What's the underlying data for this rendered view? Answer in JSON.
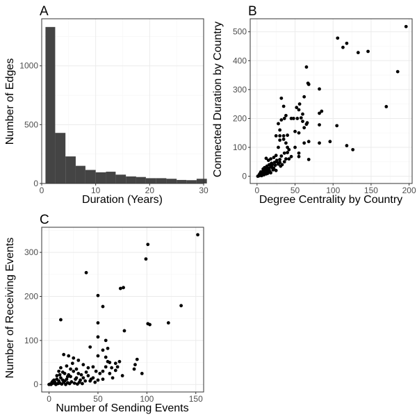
{
  "chart_data": [
    {
      "panel": "A",
      "type": "bar",
      "xlabel": "Duration (Years)",
      "ylabel": "Number of Edges",
      "xlim": [
        0,
        30
      ],
      "ylim": [
        0,
        1400
      ],
      "x_ticks": [
        0,
        10,
        20,
        30
      ],
      "y_ticks": [
        0,
        500,
        1000
      ],
      "grid": true,
      "bar_color": "#444444",
      "bins": [
        {
          "x0": 0.7,
          "x1": 2.5,
          "value": 1330
        },
        {
          "x0": 2.5,
          "x1": 4.4,
          "value": 430
        },
        {
          "x0": 4.4,
          "x1": 6.3,
          "value": 230
        },
        {
          "x0": 6.3,
          "x1": 8.1,
          "value": 150
        },
        {
          "x0": 8.1,
          "x1": 10.0,
          "value": 115
        },
        {
          "x0": 10.0,
          "x1": 11.9,
          "value": 95
        },
        {
          "x0": 11.9,
          "x1": 13.7,
          "value": 100
        },
        {
          "x0": 13.7,
          "x1": 15.6,
          "value": 75
        },
        {
          "x0": 15.6,
          "x1": 17.5,
          "value": 60
        },
        {
          "x0": 17.5,
          "x1": 19.3,
          "value": 55
        },
        {
          "x0": 19.3,
          "x1": 21.2,
          "value": 45
        },
        {
          "x0": 21.2,
          "x1": 23.1,
          "value": 45
        },
        {
          "x0": 23.1,
          "x1": 25.0,
          "value": 40
        },
        {
          "x0": 25.0,
          "x1": 26.8,
          "value": 30
        },
        {
          "x0": 26.8,
          "x1": 28.7,
          "value": 28
        },
        {
          "x0": 28.7,
          "x1": 30.6,
          "value": 40
        }
      ]
    },
    {
      "panel": "B",
      "type": "scatter",
      "xlabel": "Degree Centrality by Country",
      "ylabel": "Connected Duration by Country",
      "xlim": [
        -9,
        204
      ],
      "ylim": [
        -25,
        545
      ],
      "x_ticks": [
        0,
        50,
        100,
        150,
        200
      ],
      "y_ticks": [
        0,
        100,
        200,
        300,
        400,
        500
      ],
      "grid": true,
      "point_color": "#000000",
      "points": [
        [
          196,
          518
        ],
        [
          106,
          478
        ],
        [
          118,
          460
        ],
        [
          113,
          446
        ],
        [
          133,
          428
        ],
        [
          146,
          432
        ],
        [
          185,
          362
        ],
        [
          170,
          241
        ],
        [
          105,
          175
        ],
        [
          96,
          120
        ],
        [
          118,
          106
        ],
        [
          126,
          92
        ],
        [
          65,
          378
        ],
        [
          67,
          322
        ],
        [
          68,
          318
        ],
        [
          82,
          302
        ],
        [
          62,
          275
        ],
        [
          56,
          250
        ],
        [
          85,
          225
        ],
        [
          82,
          218
        ],
        [
          60,
          215
        ],
        [
          55,
          230
        ],
        [
          52,
          238
        ],
        [
          58,
          202
        ],
        [
          53,
          200
        ],
        [
          60,
          190
        ],
        [
          65,
          180
        ],
        [
          66,
          185
        ],
        [
          82,
          178
        ],
        [
          62,
          168
        ],
        [
          45,
          200
        ],
        [
          30,
          140
        ],
        [
          48,
          200
        ],
        [
          50,
          155
        ],
        [
          55,
          150
        ],
        [
          68,
          120
        ],
        [
          62,
          115
        ],
        [
          82,
          115
        ],
        [
          68,
          58
        ],
        [
          55,
          80
        ],
        [
          50,
          100
        ],
        [
          55,
          68
        ],
        [
          45,
          68
        ],
        [
          42,
          92
        ],
        [
          40,
          100
        ],
        [
          38,
          115
        ],
        [
          35,
          128
        ],
        [
          32,
          270
        ],
        [
          35,
          242
        ],
        [
          38,
          210
        ],
        [
          36,
          200
        ],
        [
          32,
          195
        ],
        [
          28,
          182
        ],
        [
          30,
          160
        ],
        [
          35,
          140
        ],
        [
          40,
          142
        ],
        [
          30,
          125
        ],
        [
          25,
          140
        ],
        [
          28,
          100
        ],
        [
          36,
          80
        ],
        [
          40,
          82
        ],
        [
          32,
          70
        ],
        [
          38,
          60
        ],
        [
          30,
          58
        ],
        [
          42,
          60
        ],
        [
          25,
          72
        ],
        [
          22,
          65
        ],
        [
          18,
          60
        ],
        [
          15,
          55
        ],
        [
          12,
          62
        ],
        [
          26,
          50
        ],
        [
          28,
          42
        ],
        [
          31,
          35
        ],
        [
          24,
          38
        ],
        [
          20,
          40
        ],
        [
          18,
          32
        ],
        [
          15,
          28
        ],
        [
          12,
          25
        ],
        [
          10,
          20
        ],
        [
          8,
          18
        ],
        [
          20,
          30
        ],
        [
          22,
          28
        ],
        [
          14,
          18
        ],
        [
          16,
          22
        ],
        [
          9,
          10
        ],
        [
          11,
          12
        ],
        [
          6,
          8
        ],
        [
          5,
          5
        ],
        [
          4,
          4
        ],
        [
          7,
          12
        ],
        [
          3,
          2
        ],
        [
          2,
          1
        ],
        [
          1,
          0
        ],
        [
          5,
          15
        ],
        [
          8,
          25
        ],
        [
          10,
          30
        ],
        [
          13,
          35
        ],
        [
          16,
          40
        ],
        [
          19,
          45
        ],
        [
          23,
          48
        ],
        [
          26,
          55
        ],
        [
          30,
          48
        ],
        [
          33,
          40
        ],
        [
          36,
          50
        ],
        [
          12,
          8
        ],
        [
          14,
          10
        ],
        [
          17,
          15
        ],
        [
          6,
          2
        ],
        [
          9,
          5
        ],
        [
          4,
          10
        ],
        [
          3,
          6
        ],
        [
          21,
          22
        ],
        [
          25,
          20
        ],
        [
          18,
          12
        ]
      ]
    },
    {
      "panel": "C",
      "type": "scatter",
      "xlabel": "Number of Sending Events",
      "ylabel": "Number of Receiving Events",
      "xlim": [
        -7.5,
        158
      ],
      "ylim": [
        -17,
        357
      ],
      "x_ticks": [
        0,
        50,
        100,
        150
      ],
      "y_ticks": [
        0,
        100,
        200,
        300
      ],
      "grid": true,
      "point_color": "#000000",
      "points": [
        [
          152,
          340
        ],
        [
          101,
          318
        ],
        [
          99,
          285
        ],
        [
          38,
          254
        ],
        [
          76,
          220
        ],
        [
          73,
          218
        ],
        [
          50,
          202
        ],
        [
          55,
          177
        ],
        [
          135,
          179
        ],
        [
          101,
          138
        ],
        [
          103,
          136
        ],
        [
          122,
          140
        ],
        [
          12,
          147
        ],
        [
          50,
          140
        ],
        [
          77,
          122
        ],
        [
          50,
          108
        ],
        [
          58,
          100
        ],
        [
          42,
          85
        ],
        [
          55,
          78
        ],
        [
          58,
          62
        ],
        [
          60,
          82
        ],
        [
          50,
          65
        ],
        [
          60,
          52
        ],
        [
          62,
          50
        ],
        [
          72,
          52
        ],
        [
          68,
          48
        ],
        [
          90,
          57
        ],
        [
          88,
          45
        ],
        [
          87,
          35
        ],
        [
          95,
          25
        ],
        [
          68,
          32
        ],
        [
          75,
          20
        ],
        [
          65,
          15
        ],
        [
          55,
          12
        ],
        [
          50,
          10
        ],
        [
          45,
          15
        ],
        [
          40,
          20
        ],
        [
          42,
          8
        ],
        [
          35,
          15
        ],
        [
          32,
          10
        ],
        [
          30,
          25
        ],
        [
          28,
          35
        ],
        [
          25,
          30
        ],
        [
          22,
          18
        ],
        [
          20,
          22
        ],
        [
          18,
          12
        ],
        [
          16,
          8
        ],
        [
          15,
          5
        ],
        [
          14,
          10
        ],
        [
          12,
          15
        ],
        [
          10,
          8
        ],
        [
          8,
          12
        ],
        [
          6,
          5
        ],
        [
          5,
          3
        ],
        [
          4,
          8
        ],
        [
          3,
          2
        ],
        [
          2,
          0
        ],
        [
          1,
          1
        ],
        [
          0,
          0
        ],
        [
          7,
          0
        ],
        [
          9,
          2
        ],
        [
          11,
          3
        ],
        [
          13,
          1
        ],
        [
          17,
          0
        ],
        [
          19,
          4
        ],
        [
          21,
          2
        ],
        [
          23,
          6
        ],
        [
          26,
          3
        ],
        [
          29,
          1
        ],
        [
          31,
          5
        ],
        [
          34,
          2
        ],
        [
          37,
          8
        ],
        [
          15,
          68
        ],
        [
          20,
          65
        ],
        [
          25,
          60
        ],
        [
          10,
          30
        ],
        [
          12,
          38
        ],
        [
          30,
          55
        ],
        [
          35,
          45
        ],
        [
          40,
          38
        ],
        [
          45,
          40
        ],
        [
          48,
          30
        ],
        [
          52,
          25
        ],
        [
          55,
          30
        ],
        [
          58,
          40
        ],
        [
          62,
          25
        ],
        [
          64,
          38
        ],
        [
          70,
          40
        ],
        [
          8,
          20
        ],
        [
          5,
          10
        ],
        [
          3,
          5
        ],
        [
          27,
          12
        ],
        [
          33,
          22
        ],
        [
          38,
          28
        ],
        [
          43,
          12
        ],
        [
          47,
          5
        ],
        [
          16,
          25
        ],
        [
          18,
          42
        ],
        [
          22,
          35
        ],
        [
          24,
          48
        ],
        [
          28,
          15
        ],
        [
          11,
          22
        ],
        [
          14,
          28
        ],
        [
          19,
          18
        ]
      ]
    }
  ]
}
